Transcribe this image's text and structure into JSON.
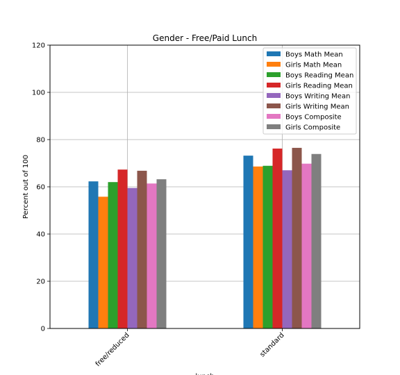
{
  "chart_data": {
    "type": "bar",
    "title": "Gender - Free/Paid Lunch",
    "xlabel": "lunch",
    "ylabel": "Percent out of 100",
    "ylim": [
      0,
      120
    ],
    "yticks": [
      0,
      20,
      40,
      60,
      80,
      100,
      120
    ],
    "categories": [
      "free/reduced",
      "standard"
    ],
    "grid": true,
    "legend_position": "top-right",
    "series": [
      {
        "name": "Boys Math Mean",
        "color": "#1f77b4",
        "values": [
          62.3,
          73.2
        ]
      },
      {
        "name": "Girls Math Mean",
        "color": "#ff7f0e",
        "values": [
          55.8,
          68.6
        ]
      },
      {
        "name": "Boys Reading Mean",
        "color": "#2ca02c",
        "values": [
          62.0,
          68.9
        ]
      },
      {
        "name": "Girls Reading Mean",
        "color": "#d62728",
        "values": [
          67.3,
          76.2
        ]
      },
      {
        "name": "Boys Writing Mean",
        "color": "#9467bd",
        "values": [
          59.5,
          67.0
        ]
      },
      {
        "name": "Girls Writing Mean",
        "color": "#8c564b",
        "values": [
          66.8,
          76.5
        ]
      },
      {
        "name": "Boys Composite",
        "color": "#e377c2",
        "values": [
          61.4,
          69.8
        ]
      },
      {
        "name": "Girls Composite",
        "color": "#7f7f7f",
        "values": [
          63.2,
          73.9
        ]
      }
    ]
  }
}
